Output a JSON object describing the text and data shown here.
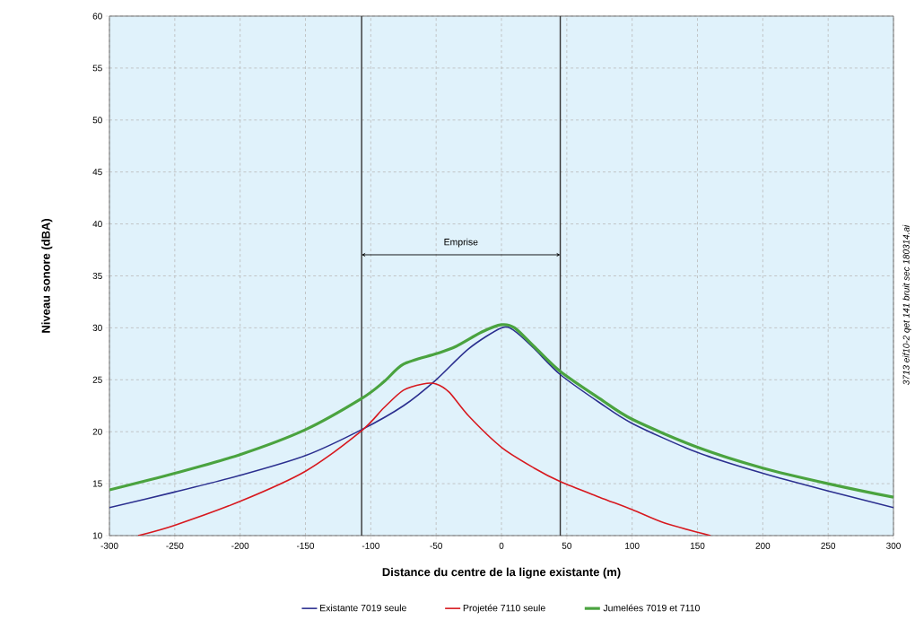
{
  "chart_data": {
    "type": "line",
    "xlabel": "Distance du centre de la ligne existante (m)",
    "ylabel": "Niveau sonore (dBA)",
    "xlim": [
      -300,
      300
    ],
    "ylim": [
      10,
      60
    ],
    "xticks": [
      -300,
      -250,
      -200,
      -150,
      -100,
      -50,
      0,
      50,
      100,
      150,
      200,
      250,
      300
    ],
    "yticks": [
      10,
      15,
      20,
      25,
      30,
      35,
      40,
      45,
      50,
      55,
      60
    ],
    "grid": true,
    "legend": "bottom",
    "line_style": "solid",
    "series": [
      {
        "name": "Existante 7019 seule",
        "color": "#2b2f8f",
        "x": [
          -300,
          -250,
          -200,
          -150,
          -107,
          -75,
          -50,
          -25,
          0,
          10,
          25,
          45,
          75,
          100,
          150,
          200,
          250,
          300
        ],
        "values": [
          12.7,
          14.2,
          15.8,
          17.7,
          20.2,
          22.5,
          25,
          28,
          30,
          29.7,
          28,
          25.5,
          22.8,
          20.8,
          18,
          16,
          14.3,
          12.7
        ]
      },
      {
        "name": "Projetée 7110 seule",
        "color": "#d7191f",
        "x": [
          -278,
          -250,
          -200,
          -150,
          -107,
          -90,
          -75,
          -60,
          -50,
          -40,
          -25,
          0,
          25,
          45,
          75,
          100,
          125,
          160
        ],
        "values": [
          10,
          11,
          13.3,
          16.2,
          20.1,
          22.3,
          24,
          24.6,
          24.6,
          23.8,
          21.5,
          18.5,
          16.5,
          15.2,
          13.7,
          12.5,
          11.2,
          10
        ]
      },
      {
        "name": "Jumelées 7019 et 7110",
        "color": "#4aa33f",
        "x": [
          -300,
          -250,
          -200,
          -150,
          -107,
          -90,
          -75,
          -50,
          -35,
          -15,
          0,
          10,
          25,
          45,
          75,
          100,
          150,
          200,
          250,
          300
        ],
        "values": [
          14.4,
          16,
          17.8,
          20.2,
          23.2,
          24.8,
          26.5,
          27.5,
          28.2,
          29.6,
          30.3,
          30,
          28.2,
          25.8,
          23.2,
          21.2,
          18.5,
          16.5,
          15,
          13.7
        ]
      }
    ],
    "ref_lines": [
      {
        "axis": "x",
        "value": -107,
        "color": "#333333"
      },
      {
        "axis": "x",
        "value": 45,
        "color": "#333333"
      }
    ],
    "annotations": [
      "Emprise",
      "3713 eif10-2 qet 141 bruit sec 180314.ai"
    ]
  }
}
